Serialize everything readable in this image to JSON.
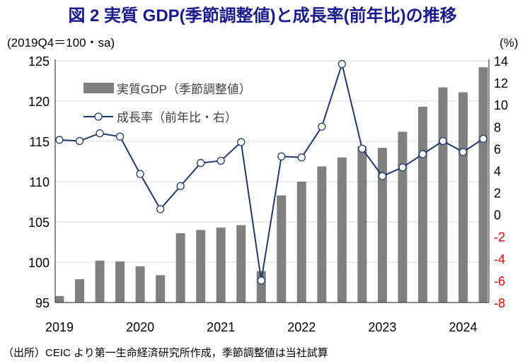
{
  "title": "図 2  実質 GDP(季節調整値)と成長率(前年比)の推移",
  "source_note": "（出所）CEIC より第一生命経済研究所作成，季節調整値は当社試算",
  "chart_data": {
    "type": "bar+line",
    "title": "図 2  実質 GDP(季節調整値)と成長率(前年比)の推移",
    "left_axis_label": "(2019Q4＝100・sa)",
    "right_axis_label": "(%)",
    "ylim_left": [
      95,
      125
    ],
    "yticks_left": [
      95,
      100,
      105,
      110,
      115,
      120,
      125
    ],
    "ylim_right": [
      -8,
      14
    ],
    "yticks_right": [
      -8,
      -6,
      -4,
      -2,
      0,
      2,
      4,
      6,
      8,
      10,
      12,
      14
    ],
    "negative_tick_color": "#ff0000",
    "x_tick_labels": [
      "2019",
      "2020",
      "2021",
      "2022",
      "2023",
      "2024"
    ],
    "categories": [
      "2019Q1",
      "2019Q2",
      "2019Q3",
      "2019Q4",
      "2020Q1",
      "2020Q2",
      "2020Q3",
      "2020Q4",
      "2021Q1",
      "2021Q2",
      "2021Q3",
      "2021Q4",
      "2022Q1",
      "2022Q2",
      "2022Q3",
      "2022Q4",
      "2023Q1",
      "2023Q2",
      "2023Q3",
      "2023Q4",
      "2024Q1",
      "2024Q2"
    ],
    "grid": "horizontal",
    "legend_placement": "top-left",
    "series": [
      {
        "name": "実質GDP（季節調整値）",
        "type": "bar",
        "axis": "left",
        "color": "#808080",
        "values": [
          95.8,
          97.9,
          100.2,
          100.1,
          99.5,
          98.4,
          103.6,
          104.0,
          104.3,
          104.6,
          98.9,
          108.3,
          110.0,
          111.9,
          113.0,
          114.4,
          114.2,
          116.2,
          119.3,
          121.7,
          121.1,
          124.2
        ]
      },
      {
        "name": "成長率（前年比・右）",
        "type": "line",
        "axis": "right",
        "color": "#1f3a6e",
        "marker": "open-circle",
        "values": [
          6.8,
          6.7,
          7.4,
          7.1,
          3.7,
          0.5,
          2.6,
          4.7,
          4.9,
          6.6,
          -6.0,
          5.3,
          5.2,
          8.0,
          13.7,
          6.0,
          3.5,
          4.3,
          5.5,
          6.7,
          5.7,
          6.9
        ]
      }
    ]
  }
}
